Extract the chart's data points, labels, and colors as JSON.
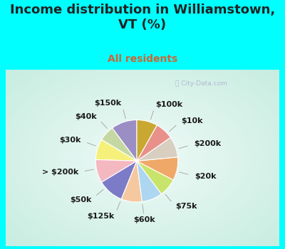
{
  "title": "Income distribution in Williamstown,\nVT (%)",
  "subtitle": "All residents",
  "bg_cyan": "#00FFFF",
  "slices": [
    {
      "label": "$100k",
      "value": 10,
      "color": "#9b8ec4"
    },
    {
      "label": "$10k",
      "value": 6,
      "color": "#c5d8a4"
    },
    {
      "label": "$200k",
      "value": 8,
      "color": "#f5f07a"
    },
    {
      "label": "$20k",
      "value": 9,
      "color": "#f4b8c1"
    },
    {
      "label": "$75k",
      "value": 10,
      "color": "#7b7bc8"
    },
    {
      "label": "$60k",
      "value": 8,
      "color": "#f5c8a0"
    },
    {
      "label": "$125k",
      "value": 8,
      "color": "#aed6f1"
    },
    {
      "label": "$50k",
      "value": 7,
      "color": "#c8e46a"
    },
    {
      "> $200k": "> $200k",
      "label": "> $200k",
      "value": 9,
      "color": "#f0a868"
    },
    {
      "label": "$30k",
      "value": 8,
      "color": "#d8cfc0"
    },
    {
      "label": "$40k",
      "value": 7,
      "color": "#e8908a"
    },
    {
      "label": "$150k",
      "value": 8,
      "color": "#c9a832"
    }
  ],
  "title_fontsize": 13,
  "subtitle_fontsize": 10,
  "label_fontsize": 8,
  "startangle": 90
}
